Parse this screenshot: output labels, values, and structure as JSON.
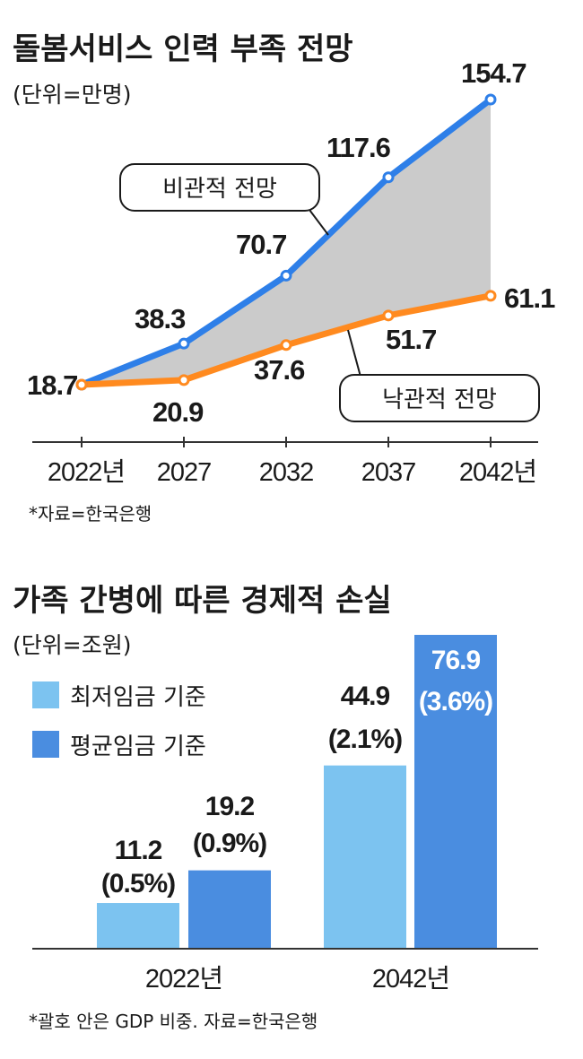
{
  "colors": {
    "pessimistic_line": "#2e7fe8",
    "optimistic_line": "#ff8a1f",
    "gap_fill": "#cbcbcb",
    "min_wage_bar": "#7cc3f0",
    "avg_wage_bar": "#4a8de0",
    "axis": "#333333"
  },
  "chart_data": [
    {
      "type": "line",
      "title": "돌봄서비스 인력 부족 전망",
      "unit": "(단위=만명)",
      "categories": [
        "2022년",
        "2027",
        "2032",
        "2037",
        "2042년"
      ],
      "series": [
        {
          "name": "비관적 전망",
          "values": [
            18.7,
            38.3,
            70.7,
            117.6,
            154.7
          ],
          "labels": [
            "18.7",
            "38.3",
            "70.7",
            "117.6",
            "154.7"
          ]
        },
        {
          "name": "낙관적 전망",
          "values": [
            18.7,
            20.9,
            37.6,
            51.7,
            61.1
          ],
          "labels": [
            "",
            "20.9",
            "37.6",
            "51.7",
            "61.1"
          ]
        }
      ],
      "ylim": [
        0,
        170
      ],
      "area_between_series": true,
      "source": "*자료=한국은행"
    },
    {
      "type": "bar",
      "title": "가족 간병에 따른 경제적 손실",
      "unit": "(단위=조원)",
      "categories": [
        "2022년",
        "2042년"
      ],
      "series": [
        {
          "name": "최저임금 기준",
          "values": [
            11.2,
            44.9
          ],
          "labels": [
            "11.2",
            "44.9"
          ],
          "pct": [
            "(0.5%)",
            "(2.1%)"
          ]
        },
        {
          "name": "평균임금 기준",
          "values": [
            19.2,
            76.9
          ],
          "labels": [
            "19.2",
            "76.9"
          ],
          "pct": [
            "(0.9%)",
            "(3.6%)"
          ]
        }
      ],
      "ylim": [
        0,
        80
      ],
      "source": "*괄호 안은 GDP 비중. 자료=한국은행"
    }
  ]
}
